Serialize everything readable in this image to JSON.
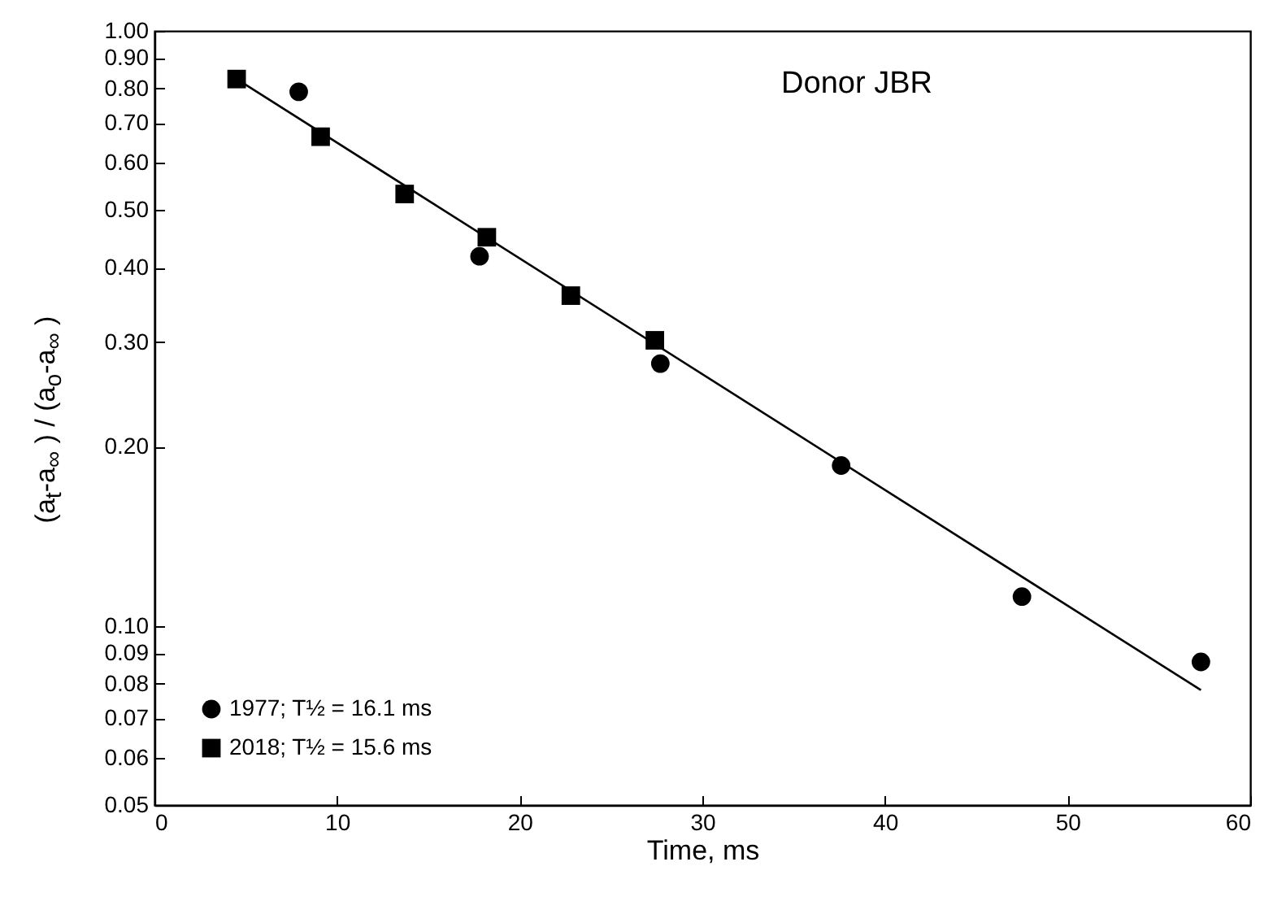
{
  "chart_data": {
    "type": "scatter",
    "xlabel": "Time, ms",
    "ylabel": "(a$_{t}$-a$_{∞}$ ) / (a$_{o}$-a$_{∞}$ )",
    "annotations": [
      "Donor JBR"
    ],
    "log": "y",
    "xlim": [
      0,
      60
    ],
    "xticks": [
      0,
      10,
      20,
      30,
      40,
      50,
      60
    ],
    "ylim": [
      0.05,
      1.0
    ],
    "yticks": [
      0.05,
      0.06,
      0.07,
      0.08,
      0.09,
      {
        "value": 0.1,
        "label": "0.10"
      },
      {
        "value": 0.2,
        "label": "0.20"
      },
      {
        "value": 0.3,
        "label": "0.30"
      },
      {
        "value": 0.4,
        "label": "0.40"
      },
      {
        "value": 0.5,
        "label": "0.50"
      },
      {
        "value": 0.6,
        "label": "0.60"
      },
      {
        "value": 0.7,
        "label": "0.70"
      },
      {
        "value": 0.8,
        "label": "0.80"
      },
      {
        "value": 0.9,
        "label": "0.90"
      },
      {
        "value": 1.0,
        "label": "1.00"
      }
    ],
    "grid": false,
    "legend": "bottom left",
    "series": [
      {
        "name": "1977; T½ = 16.1 ms",
        "color": "#000000",
        "marker": "circle",
        "x": [
          7.9,
          17.8,
          27.7,
          37.6,
          47.5,
          57.3
        ],
        "values": [
          0.79,
          0.418,
          0.276,
          0.186,
          0.112,
          0.087
        ]
      },
      {
        "name": "2018; T½ = 15.6 ms",
        "color": "#000000",
        "marker": "square",
        "x": [
          4.5,
          9.1,
          13.7,
          18.2,
          22.8,
          27.4
        ],
        "values": [
          0.83,
          0.664,
          0.532,
          0.45,
          0.359,
          0.302
        ]
      },
      {
        "type": "line",
        "color": "#000000",
        "line_style": "solid",
        "x": [
          4.5,
          57.3
        ],
        "values": [
          0.83,
          0.078
        ]
      }
    ]
  }
}
